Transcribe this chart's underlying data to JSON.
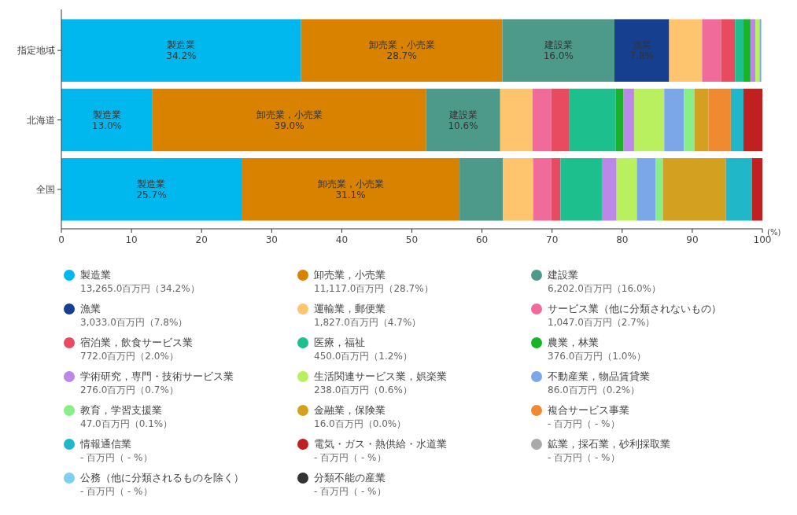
{
  "chart_data": {
    "type": "bar",
    "orientation": "horizontal",
    "stacked": true,
    "xlabel": "(%)",
    "categories": [
      "指定地域",
      "北海道",
      "全国"
    ],
    "xlim": [
      0,
      100
    ],
    "xticks": [
      0,
      10,
      20,
      30,
      40,
      50,
      60,
      70,
      80,
      90,
      100
    ],
    "grid": false,
    "legend": "bottom",
    "series": [
      {
        "name": "製造業",
        "color": "#00b8ee",
        "values": [
          34.2,
          13.0,
          25.7
        ],
        "value_labels": [
          "34.2%",
          "13.0%",
          "25.7%"
        ]
      },
      {
        "name": "卸売業，小売業",
        "color": "#d98200",
        "values": [
          28.7,
          39.0,
          31.1
        ],
        "value_labels": [
          "28.7%",
          "39.0%",
          "31.1%"
        ]
      },
      {
        "name": "建設業",
        "color": "#4e9a8a",
        "values": [
          16.0,
          10.6,
          6.2
        ],
        "value_labels": [
          "16.0%",
          "10.6%",
          null
        ]
      },
      {
        "name": "漁業",
        "color": "#173f8f",
        "values": [
          7.8,
          null,
          null
        ],
        "value_labels": [
          "7.8%",
          null,
          null
        ]
      },
      {
        "name": "運輸業，郵便業",
        "color": "#ffc46e",
        "values": [
          4.7,
          4.6,
          4.3
        ]
      },
      {
        "name": "サービス業（他に分類されないもの）",
        "color": "#f06a9a",
        "values": [
          2.7,
          2.7,
          2.6
        ]
      },
      {
        "name": "宿泊業，飲食サービス業",
        "color": "#e84a5f",
        "values": [
          2.0,
          2.5,
          1.3
        ]
      },
      {
        "name": "医療，福祉",
        "color": "#1dbf8c",
        "values": [
          1.2,
          6.7,
          5.9
        ]
      },
      {
        "name": "農業，林業",
        "color": "#17b526",
        "values": [
          1.0,
          1.1,
          null
        ]
      },
      {
        "name": "学術研究，専門・技術サービス業",
        "color": "#bb88e8",
        "values": [
          0.7,
          1.5,
          2.1
        ]
      },
      {
        "name": "生活関連サービス業，娯楽業",
        "color": "#b8f060",
        "values": [
          0.6,
          4.3,
          2.9
        ]
      },
      {
        "name": "不動産業，物品賃貸業",
        "color": "#7ba6e8",
        "values": [
          0.2,
          2.8,
          2.7
        ]
      },
      {
        "name": "教育，学習支援業",
        "color": "#88ee88",
        "values": [
          0.1,
          1.5,
          1.0
        ]
      },
      {
        "name": "金融業，保険業",
        "color": "#d4a020",
        "values": [
          0.0,
          2.0,
          9.0
        ]
      },
      {
        "name": "複合サービス事業",
        "color": "#f08a30",
        "values": [
          null,
          3.2,
          null
        ]
      },
      {
        "name": "情報通信業",
        "color": "#20b8c8",
        "values": [
          null,
          1.8,
          3.7
        ]
      },
      {
        "name": "電気・ガス・熱供給・水道業",
        "color": "#c02020",
        "values": [
          null,
          2.7,
          1.5
        ]
      },
      {
        "name": "鉱業，採石業，砂利採取業",
        "color": "#aaaaaa",
        "values": [
          null,
          null,
          null
        ]
      },
      {
        "name": "公務（他に分類されるものを除く）",
        "color": "#7fd0f0",
        "values": [
          null,
          null,
          null
        ]
      },
      {
        "name": "分類不能の産業",
        "color": "#333333",
        "values": [
          null,
          null,
          null
        ]
      }
    ],
    "annotations": [
      "13,265.0百万円（34.2%）",
      "11,117.0百万円（28.7%）",
      "6,202.0百万円（16.0%）",
      "3,033.0百万円（7.8%）",
      "1,827.0百万円（4.7%）",
      "1,047.0百万円（2.7%）",
      "772.0百万円（2.0%）",
      "450.0百万円（1.2%）",
      "376.0百万円（1.0%）",
      "276.0百万円（0.7%）",
      "238.0百万円（0.6%）",
      "86.0百万円（0.2%）",
      "47.0百万円（0.1%）",
      "16.0百万円（0.0%）",
      "- 百万円（ - %）",
      "- 百万円（ - %）",
      "- 百万円（ - %）",
      "- 百万円（ - %）",
      "- 百万円（ - %）",
      "- 百万円（ - %）"
    ]
  }
}
